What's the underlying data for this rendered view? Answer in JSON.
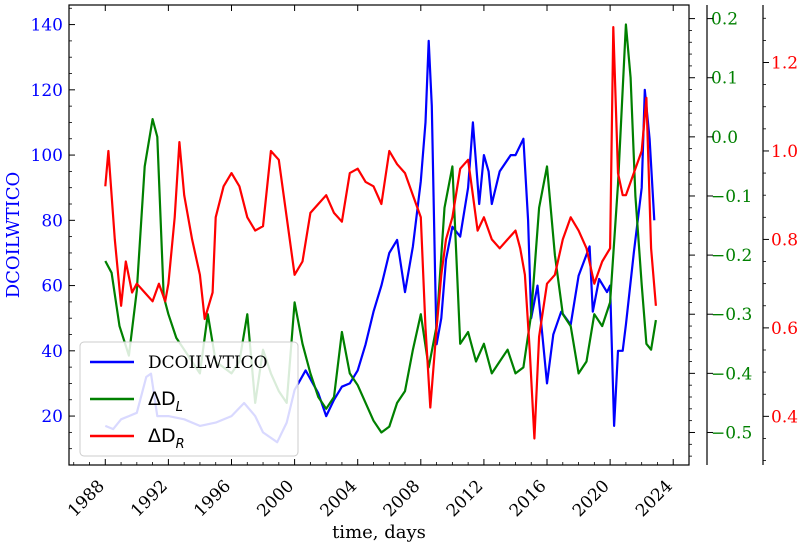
{
  "chart_data": {
    "type": "line",
    "xlabel": "time, days",
    "x_ticks": [
      "1988",
      "1992",
      "1996",
      "2000",
      "2004",
      "2008",
      "2012",
      "2016",
      "2020",
      "2024"
    ],
    "x_range": [
      1985.7,
      2025.0
    ],
    "grid": false,
    "legend_position": "bottom-left",
    "axes": {
      "left": {
        "label": "DCOILWTICO",
        "ylim": [
          5,
          146
        ],
        "ticks": [
          "20",
          "40",
          "60",
          "80",
          "100",
          "120",
          "140"
        ],
        "color": "#0000ff"
      },
      "right1": {
        "label": "",
        "ylim": [
          -0.555,
          0.223
        ],
        "ticks": [
          "−0.5",
          "−0.4",
          "−0.3",
          "−0.2",
          "−0.1",
          "0.0",
          "0.1",
          "0.2"
        ],
        "color": "#008000"
      },
      "right2": {
        "label": "",
        "ylim": [
          0.29,
          1.33
        ],
        "ticks": [
          "0.4",
          "0.6",
          "0.8",
          "1.0",
          "1.2"
        ],
        "color": "#ff0000"
      }
    },
    "series": [
      {
        "name": "DCOILWTICO",
        "axis": "left",
        "color": "#0000ff",
        "x": [
          1988.0,
          1988.5,
          1989.0,
          1989.5,
          1990.0,
          1990.6,
          1990.9,
          1991.3,
          1992.0,
          1993.0,
          1994.0,
          1995.0,
          1996.0,
          1996.8,
          1997.5,
          1998.0,
          1998.9,
          1999.5,
          2000.0,
          2000.7,
          2001.5,
          2002.0,
          2002.5,
          2003.0,
          2003.5,
          2004.0,
          2004.5,
          2005.0,
          2005.5,
          2006.0,
          2006.5,
          2007.0,
          2007.5,
          2008.0,
          2008.3,
          2008.5,
          2008.7,
          2008.9,
          2009.0,
          2009.3,
          2009.6,
          2010.0,
          2010.5,
          2011.0,
          2011.3,
          2011.7,
          2012.0,
          2012.3,
          2012.5,
          2013.0,
          2013.7,
          2014.0,
          2014.5,
          2014.8,
          2015.0,
          2015.4,
          2015.7,
          2016.0,
          2016.4,
          2016.9,
          2017.5,
          2018.0,
          2018.7,
          2018.9,
          2019.3,
          2019.8,
          2020.0,
          2020.25,
          2020.5,
          2020.8,
          2021.0,
          2021.5,
          2022.0,
          2022.2,
          2022.5,
          2022.8
        ],
        "values": [
          17,
          16,
          19,
          20,
          21,
          32,
          33,
          20,
          20,
          19,
          17,
          18,
          20,
          24,
          20,
          15,
          12,
          18,
          28,
          34,
          27,
          20,
          25,
          29,
          30,
          34,
          42,
          52,
          60,
          70,
          74,
          58,
          72,
          92,
          110,
          135,
          115,
          65,
          42,
          50,
          68,
          78,
          75,
          90,
          110,
          85,
          100,
          95,
          85,
          95,
          100,
          100,
          105,
          80,
          50,
          60,
          45,
          30,
          45,
          52,
          48,
          63,
          72,
          52,
          62,
          58,
          60,
          17,
          40,
          40,
          48,
          70,
          90,
          120,
          105,
          80
        ]
      },
      {
        "name": "ΔD",
        "sub": "L",
        "axis": "right1",
        "color": "#008000",
        "x": [
          1988.0,
          1988.4,
          1988.9,
          1989.5,
          1990.0,
          1990.5,
          1991.0,
          1991.3,
          1991.7,
          1992.0,
          1992.5,
          1993.0,
          1994.0,
          1994.5,
          1995.0,
          1996.0,
          1996.5,
          1997.0,
          1997.5,
          1998.0,
          1998.5,
          1999.0,
          1999.5,
          2000.0,
          2000.5,
          2001.0,
          2001.5,
          2002.0,
          2002.5,
          2003.0,
          2003.5,
          2004.0,
          2004.5,
          2005.0,
          2005.5,
          2006.0,
          2006.5,
          2007.0,
          2007.5,
          2008.0,
          2008.5,
          2009.0,
          2009.5,
          2010.0,
          2010.5,
          2011.0,
          2011.5,
          2012.0,
          2012.5,
          2013.0,
          2013.5,
          2014.0,
          2014.5,
          2015.0,
          2015.5,
          2016.0,
          2016.5,
          2017.0,
          2017.5,
          2018.0,
          2018.5,
          2019.0,
          2019.5,
          2020.0,
          2020.5,
          2021.0,
          2021.3,
          2021.6,
          2022.0,
          2022.3,
          2022.6,
          2022.9
        ],
        "values": [
          -0.21,
          -0.23,
          -0.32,
          -0.37,
          -0.26,
          -0.05,
          0.03,
          0.0,
          -0.27,
          -0.3,
          -0.34,
          -0.36,
          -0.4,
          -0.3,
          -0.38,
          -0.4,
          -0.38,
          -0.3,
          -0.45,
          -0.36,
          -0.4,
          -0.43,
          -0.45,
          -0.28,
          -0.35,
          -0.4,
          -0.44,
          -0.46,
          -0.44,
          -0.33,
          -0.4,
          -0.42,
          -0.45,
          -0.48,
          -0.5,
          -0.49,
          -0.45,
          -0.43,
          -0.36,
          -0.3,
          -0.39,
          -0.32,
          -0.12,
          -0.05,
          -0.35,
          -0.33,
          -0.38,
          -0.35,
          -0.4,
          -0.38,
          -0.36,
          -0.4,
          -0.39,
          -0.3,
          -0.12,
          -0.05,
          -0.2,
          -0.3,
          -0.32,
          -0.4,
          -0.38,
          -0.3,
          -0.32,
          -0.28,
          -0.08,
          0.19,
          0.1,
          -0.1,
          -0.25,
          -0.35,
          -0.36,
          -0.31
        ]
      },
      {
        "name": "ΔD",
        "sub": "R",
        "axis": "right2",
        "color": "#ff0000",
        "x": [
          1988.0,
          1988.2,
          1988.6,
          1989.0,
          1989.3,
          1989.7,
          1990.0,
          1990.5,
          1991.0,
          1991.4,
          1991.8,
          1992.0,
          1992.4,
          1992.7,
          1993.0,
          1993.5,
          1994.0,
          1994.3,
          1994.8,
          1995.0,
          1995.5,
          1996.0,
          1996.5,
          1997.0,
          1997.5,
          1998.0,
          1998.5,
          1999.0,
          1999.5,
          2000.0,
          2000.5,
          2001.0,
          2001.5,
          2002.0,
          2002.5,
          2003.0,
          2003.5,
          2004.0,
          2004.5,
          2005.0,
          2005.5,
          2006.0,
          2006.5,
          2007.0,
          2007.5,
          2008.0,
          2008.3,
          2008.6,
          2009.0,
          2009.3,
          2009.6,
          2010.0,
          2010.5,
          2011.0,
          2011.3,
          2011.6,
          2012.0,
          2012.5,
          2013.0,
          2013.5,
          2014.0,
          2014.3,
          2014.6,
          2014.9,
          2015.2,
          2015.5,
          2016.0,
          2016.5,
          2017.0,
          2017.5,
          2018.0,
          2018.5,
          2019.0,
          2019.5,
          2020.0,
          2020.2,
          2020.5,
          2020.8,
          2021.0,
          2021.5,
          2022.0,
          2022.3,
          2022.6,
          2022.9
        ],
        "values": [
          0.92,
          1.0,
          0.8,
          0.65,
          0.75,
          0.68,
          0.7,
          0.68,
          0.66,
          0.7,
          0.66,
          0.7,
          0.85,
          1.02,
          0.9,
          0.8,
          0.72,
          0.62,
          0.68,
          0.85,
          0.92,
          0.95,
          0.92,
          0.85,
          0.82,
          0.83,
          1.0,
          0.98,
          0.85,
          0.72,
          0.75,
          0.86,
          0.88,
          0.9,
          0.86,
          0.84,
          0.95,
          0.96,
          0.93,
          0.92,
          0.88,
          1.0,
          0.97,
          0.95,
          0.9,
          0.85,
          0.6,
          0.42,
          0.6,
          0.72,
          0.8,
          0.85,
          0.96,
          0.98,
          0.9,
          0.82,
          0.85,
          0.8,
          0.78,
          0.8,
          0.82,
          0.78,
          0.72,
          0.55,
          0.35,
          0.58,
          0.7,
          0.72,
          0.8,
          0.85,
          0.82,
          0.78,
          0.7,
          0.75,
          0.78,
          1.28,
          0.95,
          0.9,
          0.9,
          0.95,
          1.0,
          1.12,
          0.78,
          0.65
        ]
      }
    ]
  }
}
